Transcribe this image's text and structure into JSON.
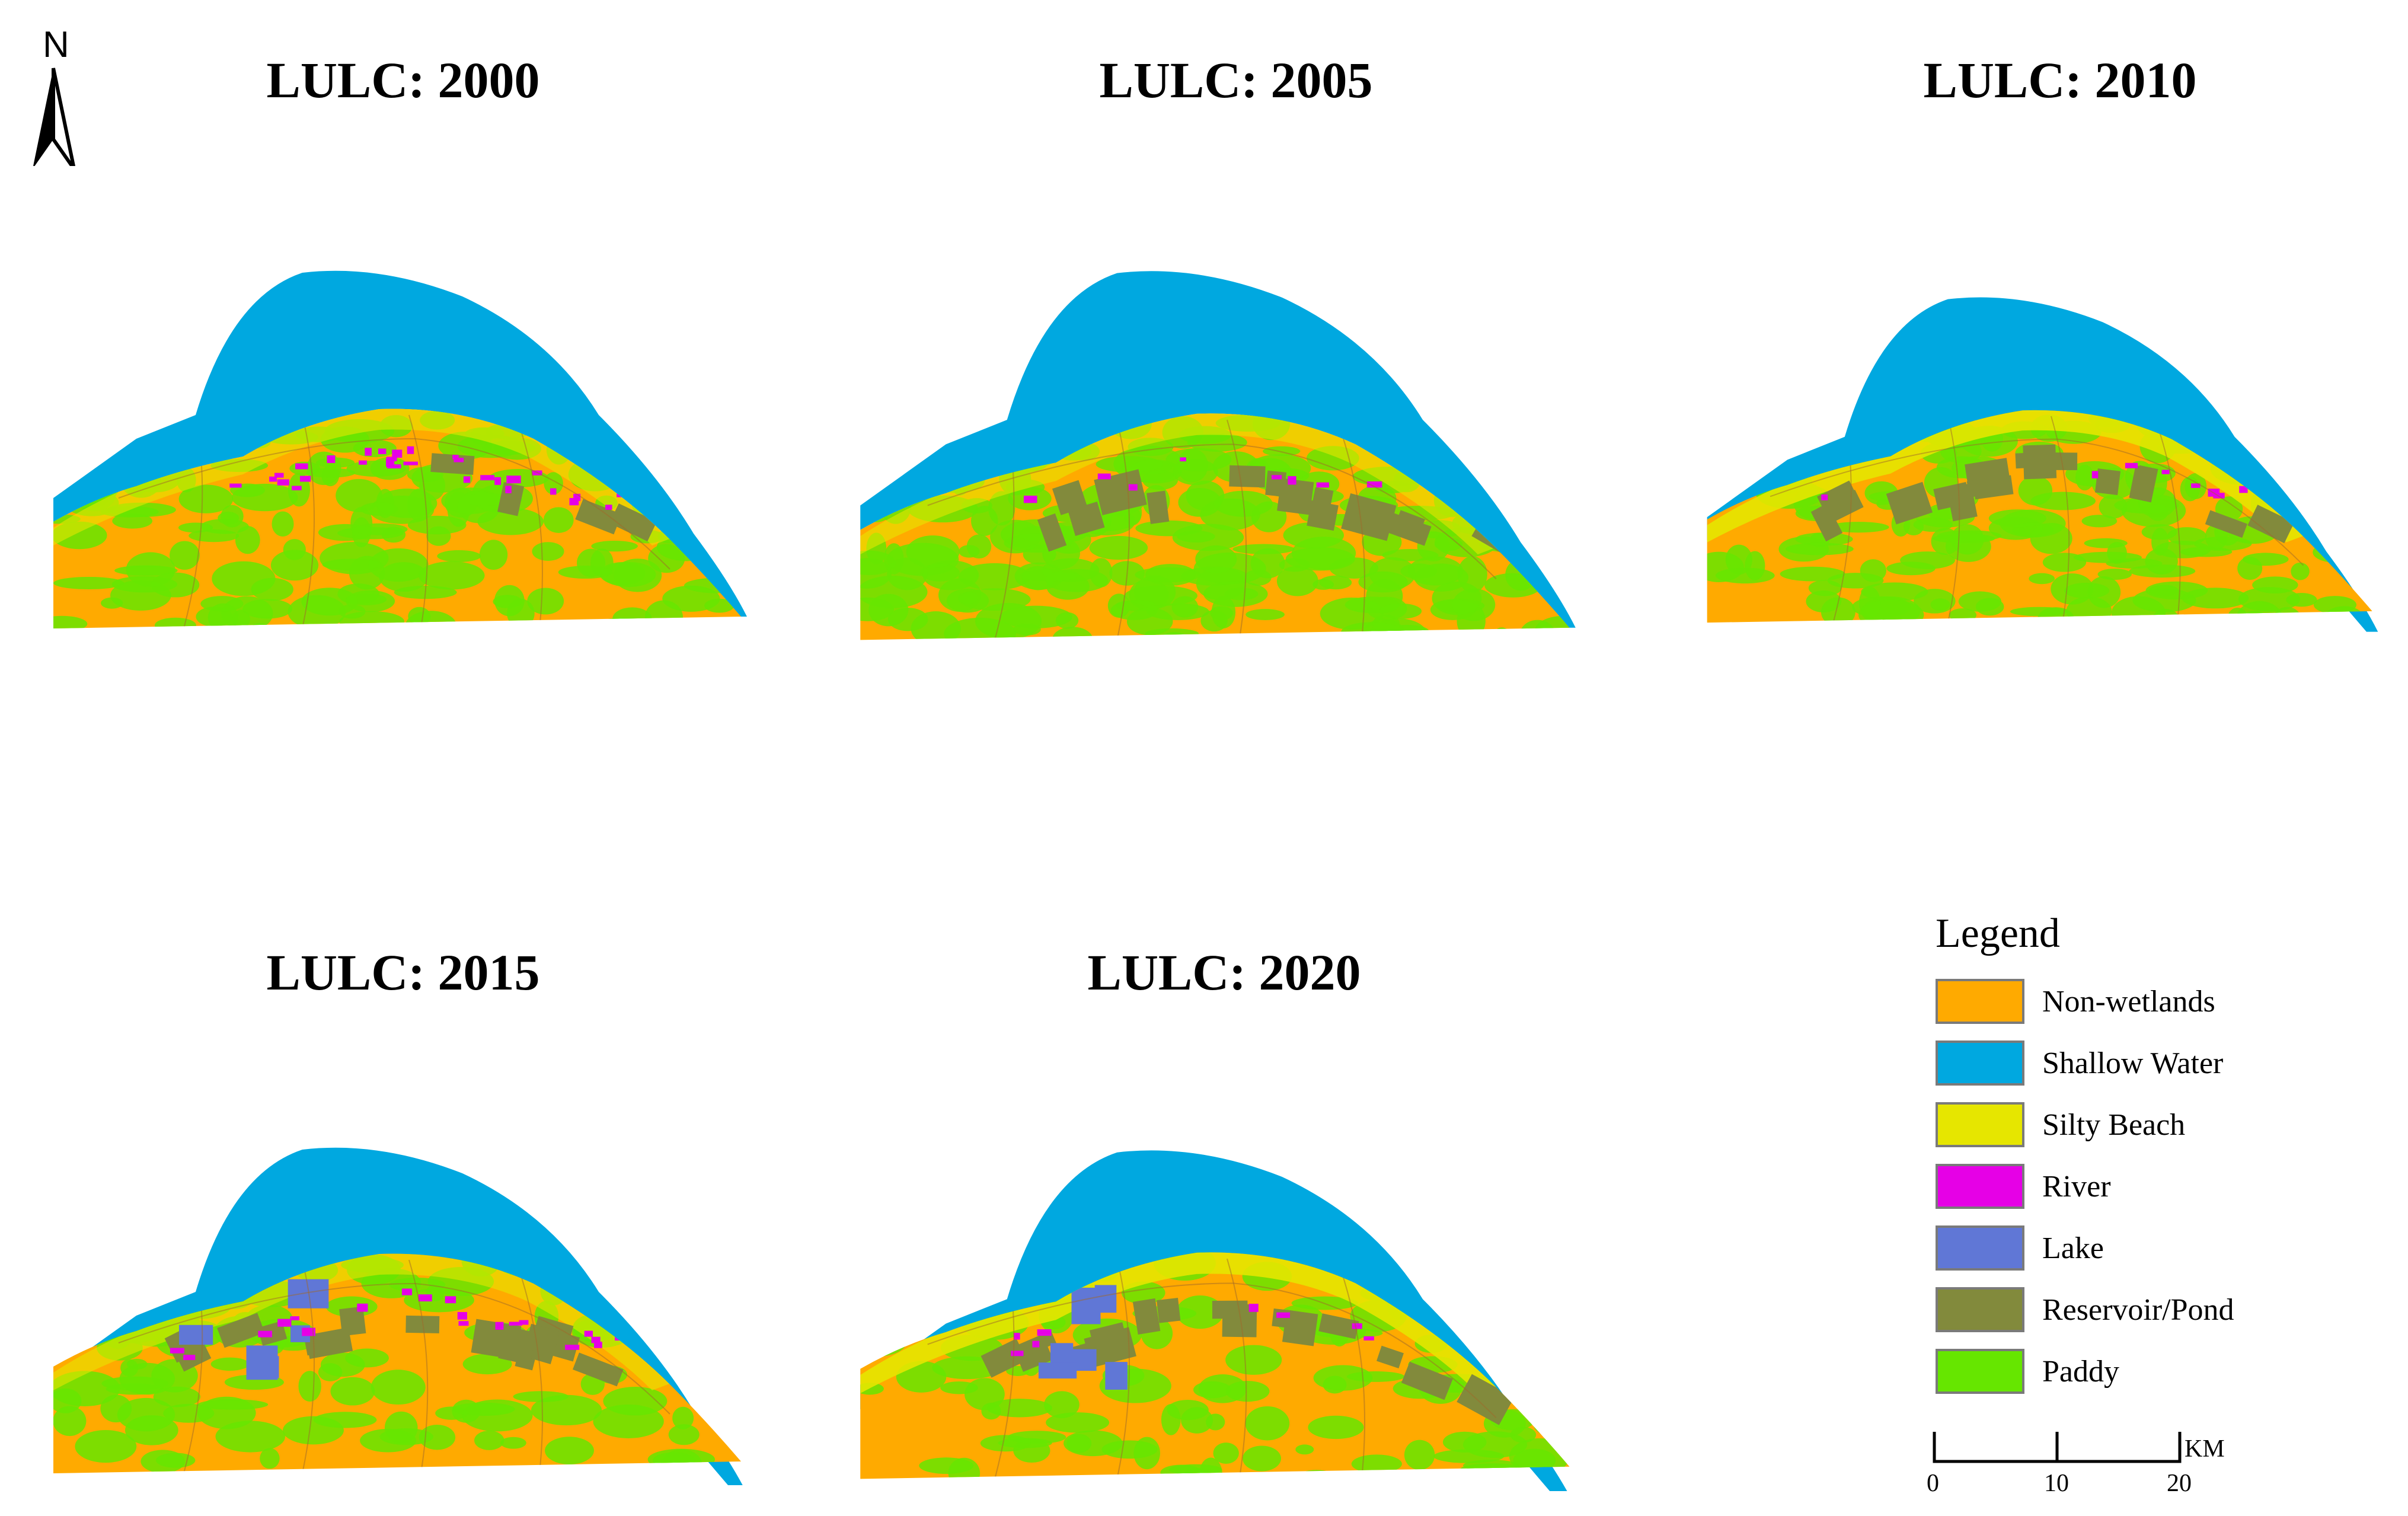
{
  "north_arrow": {
    "label": "N"
  },
  "maps": [
    {
      "title": "LULC: 2000"
    },
    {
      "title": "LULC: 2005"
    },
    {
      "title": "LULC: 2010"
    },
    {
      "title": "LULC: 2015"
    },
    {
      "title": "LULC: 2020"
    }
  ],
  "legend": {
    "title": "Legend",
    "items": [
      {
        "label": "Non-wetlands",
        "color": "#ffaa00"
      },
      {
        "label": "Shallow Water",
        "color": "#00a8e0"
      },
      {
        "label": "Silty Beach",
        "color": "#e6e600"
      },
      {
        "label": "River",
        "color": "#e600e6"
      },
      {
        "label": "Lake",
        "color": "#6077d6"
      },
      {
        "label": "Reservoir/Pond",
        "color": "#828a3c"
      },
      {
        "label": "Paddy",
        "color": "#66e600"
      }
    ]
  },
  "scale_bar": {
    "unit": "KM",
    "ticks": [
      "0",
      "10",
      "20"
    ]
  }
}
